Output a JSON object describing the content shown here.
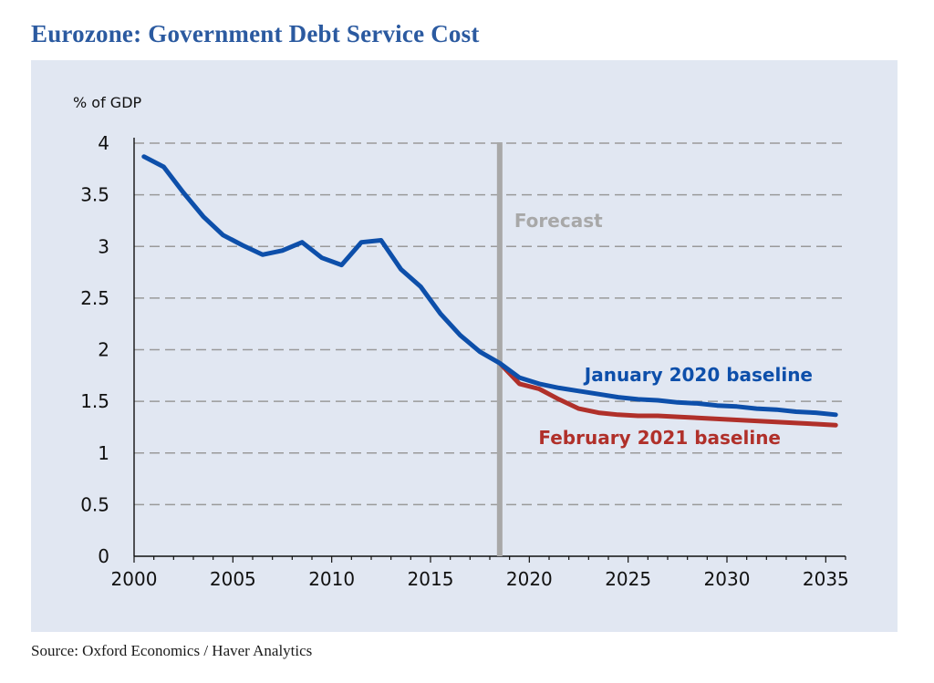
{
  "title": "Eurozone: Government Debt Service Cost",
  "source": "Source: Oxford Economics / Haver Analytics",
  "colors": {
    "panel": "#e1e7f2",
    "title": "#2b5aa0",
    "january": "#0d4faa",
    "february": "#b0302a",
    "forecast": "#a8a8a8",
    "grid": "#9a9a9a"
  },
  "chart_data": {
    "type": "line",
    "ylabel": "% of GDP",
    "xlim": [
      2000,
      2036
    ],
    "ylim": [
      0,
      4
    ],
    "x_ticks": [
      2000,
      2005,
      2010,
      2015,
      2020,
      2025,
      2030,
      2035
    ],
    "y_ticks": [
      0,
      0.5,
      1,
      1.5,
      2,
      2.5,
      3,
      3.5,
      4
    ],
    "y_tick_labels": [
      "0",
      "0.5",
      "1",
      "1.5",
      "2",
      "2.5",
      "3",
      "3.5",
      "4"
    ],
    "grid": "horizontal dashed",
    "forecast_marker": {
      "x": 2018.5,
      "label": "Forecast"
    },
    "series": [
      {
        "name": "January 2020 baseline",
        "label_position": "above line, right",
        "x": [
          2000.5,
          2001.5,
          2002.5,
          2003.5,
          2004.5,
          2005.5,
          2006.5,
          2007.5,
          2008.5,
          2009.5,
          2010.5,
          2011.5,
          2012.5,
          2013.5,
          2014.5,
          2015.5,
          2016.5,
          2017.5,
          2018.5,
          2019.5,
          2020.5,
          2021.5,
          2022.5,
          2023.5,
          2024.5,
          2025.5,
          2026.5,
          2027.5,
          2028.5,
          2029.5,
          2030.5,
          2031.5,
          2032.5,
          2033.5,
          2034.5,
          2035.5
        ],
        "values": [
          3.87,
          3.77,
          3.52,
          3.29,
          3.11,
          3.01,
          2.92,
          2.96,
          3.04,
          2.89,
          2.82,
          3.04,
          3.06,
          2.78,
          2.61,
          2.35,
          2.14,
          1.98,
          1.87,
          1.73,
          1.67,
          1.63,
          1.6,
          1.57,
          1.54,
          1.52,
          1.51,
          1.49,
          1.48,
          1.46,
          1.45,
          1.43,
          1.42,
          1.4,
          1.39,
          1.37
        ]
      },
      {
        "name": "February 2021 baseline",
        "label_position": "below line, right",
        "x": [
          2018.5,
          2019.5,
          2020.5,
          2021.5,
          2022.5,
          2023.5,
          2024.5,
          2025.5,
          2026.5,
          2027.5,
          2028.5,
          2029.5,
          2030.5,
          2031.5,
          2032.5,
          2033.5,
          2034.5,
          2035.5
        ],
        "values": [
          1.87,
          1.67,
          1.62,
          1.52,
          1.43,
          1.39,
          1.37,
          1.36,
          1.36,
          1.35,
          1.34,
          1.33,
          1.32,
          1.31,
          1.3,
          1.29,
          1.28,
          1.27
        ]
      }
    ]
  }
}
